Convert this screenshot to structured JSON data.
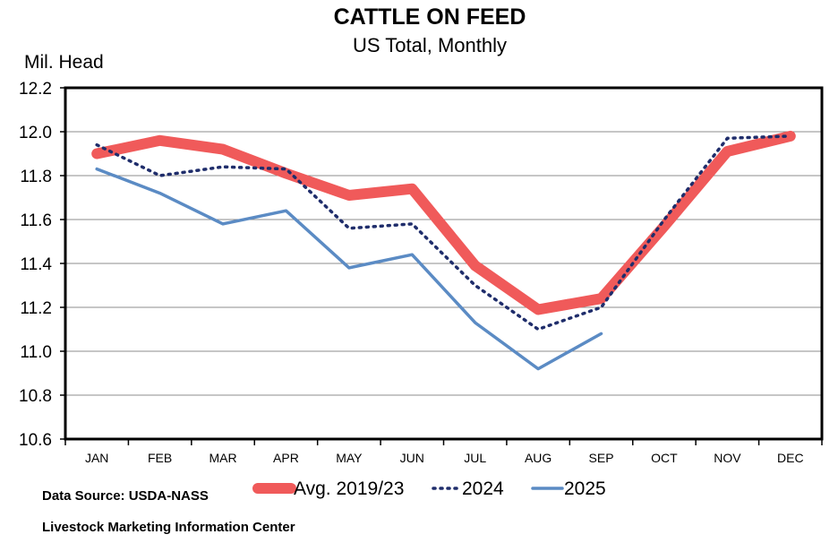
{
  "chart_data": {
    "type": "line",
    "title": "CATTLE ON FEED",
    "subtitle": "US Total, Monthly",
    "ylabel": "Mil. Head",
    "xlabel": "",
    "categories": [
      "JAN",
      "FEB",
      "MAR",
      "APR",
      "MAY",
      "JUN",
      "JUL",
      "AUG",
      "SEP",
      "OCT",
      "NOV",
      "DEC"
    ],
    "ylim": [
      10.6,
      12.2
    ],
    "yticks": [
      "10.6",
      "10.8",
      "11.0",
      "11.2",
      "11.4",
      "11.6",
      "11.8",
      "12.0",
      "12.2"
    ],
    "grid": true,
    "legend_position": "bottom",
    "series": [
      {
        "name": "Avg. 2019/23",
        "color": "#f05a5a",
        "style": "thick-solid",
        "values": [
          11.9,
          11.96,
          11.92,
          11.81,
          11.71,
          11.74,
          11.39,
          11.19,
          11.24,
          11.57,
          11.91,
          11.98
        ]
      },
      {
        "name": "2024",
        "color": "#1f2d6b",
        "style": "dotted",
        "values": [
          11.94,
          11.8,
          11.84,
          11.83,
          11.56,
          11.58,
          11.3,
          11.1,
          11.2,
          11.6,
          11.97,
          11.98
        ]
      },
      {
        "name": "2025",
        "color": "#5b8bc4",
        "style": "solid",
        "values": [
          11.83,
          11.72,
          11.58,
          11.64,
          11.38,
          11.44,
          11.13,
          10.92,
          11.08,
          null,
          null,
          null
        ]
      }
    ]
  },
  "footer": {
    "source": "Data Source:  USDA-NASS",
    "org": "Livestock Marketing Information Center"
  }
}
